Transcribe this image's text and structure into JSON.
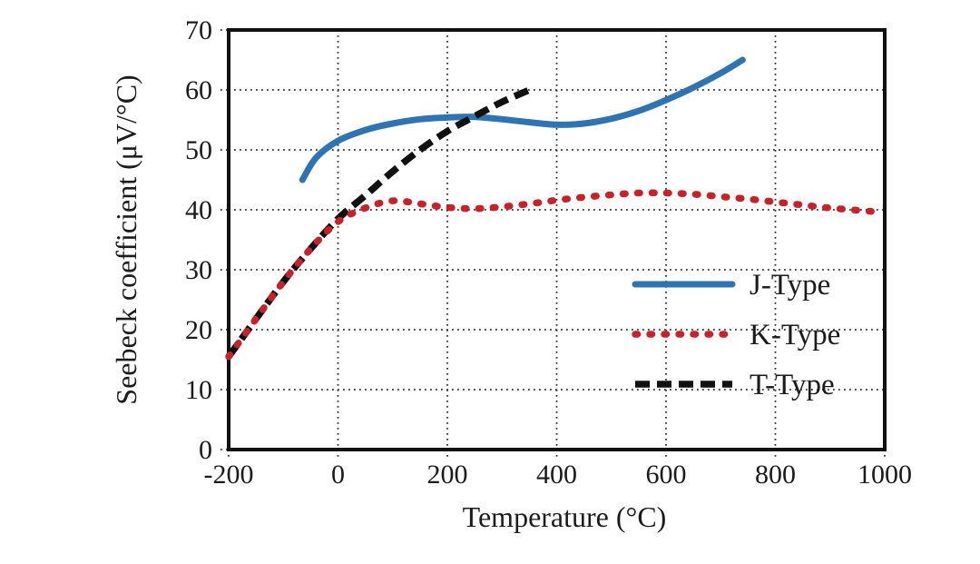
{
  "chart_data": {
    "type": "line",
    "title": "",
    "xlabel": "Temperature (°C)",
    "ylabel": "Seebeck coefficient (μV/°C)",
    "xlim": [
      -200,
      1000
    ],
    "ylim": [
      0,
      70
    ],
    "x_ticks": [
      -200,
      0,
      200,
      400,
      600,
      800,
      1000
    ],
    "y_ticks": [
      0,
      10,
      20,
      30,
      40,
      50,
      60,
      70
    ],
    "grid": true,
    "grid_style": "dotted",
    "legend_position": "center-right-inside",
    "axis_color": "#111111",
    "series": [
      {
        "name": "J-Type",
        "color": "#2E74B5",
        "line_style": "solid",
        "points": [
          [
            -65,
            45
          ],
          [
            -40,
            48.7
          ],
          [
            0,
            51.5
          ],
          [
            50,
            53.3
          ],
          [
            100,
            54.4
          ],
          [
            150,
            55.1
          ],
          [
            200,
            55.4
          ],
          [
            250,
            55.5
          ],
          [
            300,
            55.1
          ],
          [
            350,
            54.6
          ],
          [
            400,
            54.2
          ],
          [
            450,
            54.4
          ],
          [
            500,
            55.2
          ],
          [
            550,
            56.5
          ],
          [
            600,
            58.3
          ],
          [
            650,
            60.4
          ],
          [
            700,
            62.8
          ],
          [
            740,
            65
          ]
        ]
      },
      {
        "name": "K-Type",
        "color": "#CB2027",
        "line_style": "dotted",
        "points": [
          [
            -200,
            15.5
          ],
          [
            -150,
            21.8
          ],
          [
            -100,
            28
          ],
          [
            -50,
            33.5
          ],
          [
            0,
            38
          ],
          [
            50,
            40.3
          ],
          [
            100,
            41.5
          ],
          [
            150,
            41
          ],
          [
            200,
            40.4
          ],
          [
            250,
            40.2
          ],
          [
            300,
            40.5
          ],
          [
            350,
            41
          ],
          [
            400,
            41.6
          ],
          [
            450,
            42.1
          ],
          [
            500,
            42.5
          ],
          [
            550,
            42.8
          ],
          [
            600,
            42.8
          ],
          [
            650,
            42.6
          ],
          [
            700,
            42.2
          ],
          [
            750,
            41.8
          ],
          [
            800,
            41.3
          ],
          [
            850,
            40.8
          ],
          [
            900,
            40.3
          ],
          [
            980,
            39.7
          ]
        ]
      },
      {
        "name": "T-Type",
        "color": "#111111",
        "line_style": "dashed",
        "points": [
          [
            -200,
            15.5
          ],
          [
            -150,
            21.8
          ],
          [
            -100,
            28
          ],
          [
            -50,
            33.5
          ],
          [
            0,
            38.5
          ],
          [
            50,
            42.4
          ],
          [
            100,
            46.4
          ],
          [
            150,
            50
          ],
          [
            200,
            53.1
          ],
          [
            250,
            55.6
          ],
          [
            300,
            58
          ],
          [
            350,
            60
          ]
        ]
      }
    ]
  }
}
